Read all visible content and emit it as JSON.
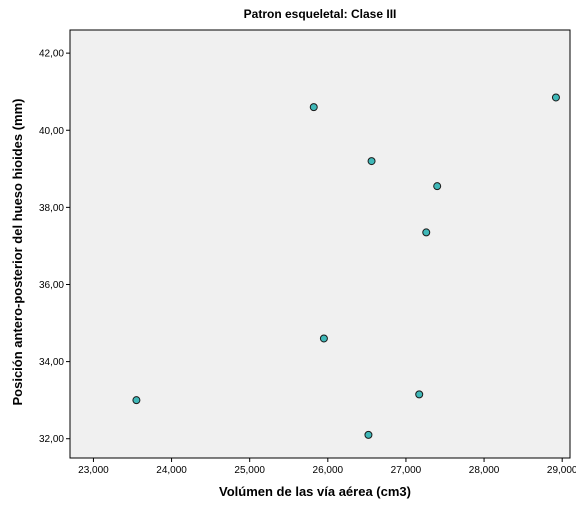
{
  "chart_data": {
    "type": "scatter",
    "title": "Patron esqueletal: Clase III",
    "xlabel": "Volúmen de las vía aérea (cm3)",
    "ylabel": "Posición antero-posterior del hueso hioides (mm)",
    "xlim": [
      22700,
      29100
    ],
    "ylim": [
      31.5,
      42.6
    ],
    "x_ticks": [
      23000,
      24000,
      25000,
      26000,
      27000,
      28000,
      29000
    ],
    "x_tick_labels": [
      "23,000",
      "24,000",
      "25,000",
      "26,000",
      "27,000",
      "28,000",
      "29,000"
    ],
    "y_ticks": [
      32,
      34,
      36,
      38,
      40,
      42
    ],
    "y_tick_labels": [
      "32,00",
      "34,00",
      "36,00",
      "38,00",
      "40,00",
      "42,00"
    ],
    "grid": false,
    "background_color": "#f0f0f0",
    "marker_color": "#3fb8b8",
    "marker_edge_color": "#1a1a1a",
    "points": [
      {
        "x": 23550,
        "y": 33.0
      },
      {
        "x": 25820,
        "y": 40.6
      },
      {
        "x": 25950,
        "y": 34.6
      },
      {
        "x": 26520,
        "y": 32.1
      },
      {
        "x": 26560,
        "y": 39.2
      },
      {
        "x": 27170,
        "y": 33.15
      },
      {
        "x": 27260,
        "y": 37.35
      },
      {
        "x": 27400,
        "y": 38.55
      },
      {
        "x": 28920,
        "y": 40.85
      }
    ]
  }
}
